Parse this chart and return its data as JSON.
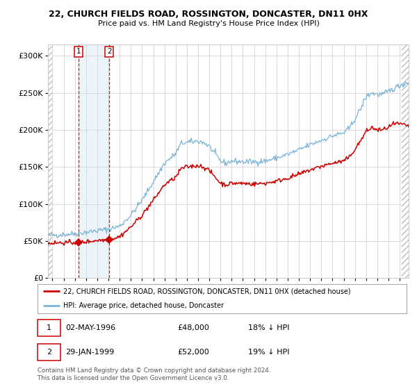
{
  "title": "22, CHURCH FIELDS ROAD, ROSSINGTON, DONCASTER, DN11 0HX",
  "subtitle": "Price paid vs. HM Land Registry's House Price Index (HPI)",
  "ylabel_ticks": [
    "£0",
    "£50K",
    "£100K",
    "£150K",
    "£200K",
    "£250K",
    "£300K"
  ],
  "ytick_values": [
    0,
    50000,
    100000,
    150000,
    200000,
    250000,
    300000
  ],
  "ylim": [
    0,
    315000
  ],
  "xlim_start": 1993.6,
  "xlim_end": 2025.8,
  "sale1_date": 1996.33,
  "sale1_price": 48000,
  "sale1_label": "1",
  "sale2_date": 1999.08,
  "sale2_price": 52000,
  "sale2_label": "2",
  "hpi_line_color": "#7ab4d8",
  "price_line_color": "#cc0000",
  "dashed_line_color": "#cc0000",
  "shade_color": "#cce0f0",
  "legend_entry1": "22, CHURCH FIELDS ROAD, ROSSINGTON, DONCASTER, DN11 0HX (detached house)",
  "legend_entry2": "HPI: Average price, detached house, Doncaster",
  "table_row1": [
    "1",
    "02-MAY-1996",
    "£48,000",
    "18% ↓ HPI"
  ],
  "table_row2": [
    "2",
    "29-JAN-1999",
    "£52,000",
    "19% ↓ HPI"
  ],
  "footnote": "Contains HM Land Registry data © Crown copyright and database right 2024.\nThis data is licensed under the Open Government Licence v3.0.",
  "background_color": "#ffffff",
  "grid_color": "#cccccc",
  "hatch_color": "#bbbbbb",
  "box_color": "#cc0000"
}
